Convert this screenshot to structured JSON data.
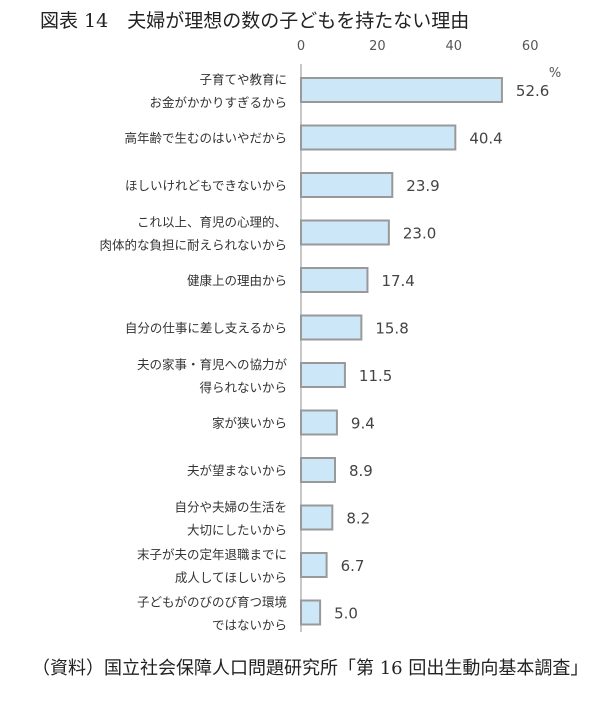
{
  "chart_data": {
    "type": "bar",
    "orientation": "horizontal",
    "title": "図表 14　夫婦が理想の数の子どもを持たない理由",
    "unit": "%",
    "xlim": [
      0,
      60
    ],
    "xticks": [
      0,
      20,
      40,
      60
    ],
    "axis_position": "top",
    "grid": false,
    "bar_color": "#cce8f8",
    "bar_border": "#999999",
    "categories": [
      [
        "子育てや教育に",
        "お金がかかりすぎるから"
      ],
      [
        "高年齢で生むのはいやだから"
      ],
      [
        "ほしいけれどもできないから"
      ],
      [
        "これ以上、育児の心理的、",
        "肉体的な負担に耐えられないから"
      ],
      [
        "健康上の理由から"
      ],
      [
        "自分の仕事に差し支えるから"
      ],
      [
        "夫の家事・育児への協力が",
        "得られないから"
      ],
      [
        "家が狭いから"
      ],
      [
        "夫が望まないから"
      ],
      [
        "自分や夫婦の生活を",
        "大切にしたいから"
      ],
      [
        "末子が夫の定年退職までに",
        "成人してほしいから"
      ],
      [
        "子どもがのびのび育つ環境",
        "ではないから"
      ]
    ],
    "values": [
      52.6,
      40.4,
      23.9,
      23.0,
      17.4,
      15.8,
      11.5,
      9.4,
      8.9,
      8.2,
      6.7,
      5.0
    ],
    "value_labels": [
      "52.6",
      "40.4",
      "23.9",
      "23.0",
      "17.4",
      "15.8",
      "11.5",
      "9.4",
      "8.9",
      "8.2",
      "6.7",
      "5.0"
    ]
  },
  "source": "（資料）国立社会保障人口問題研究所「第 16 回出生動向基本調査」"
}
